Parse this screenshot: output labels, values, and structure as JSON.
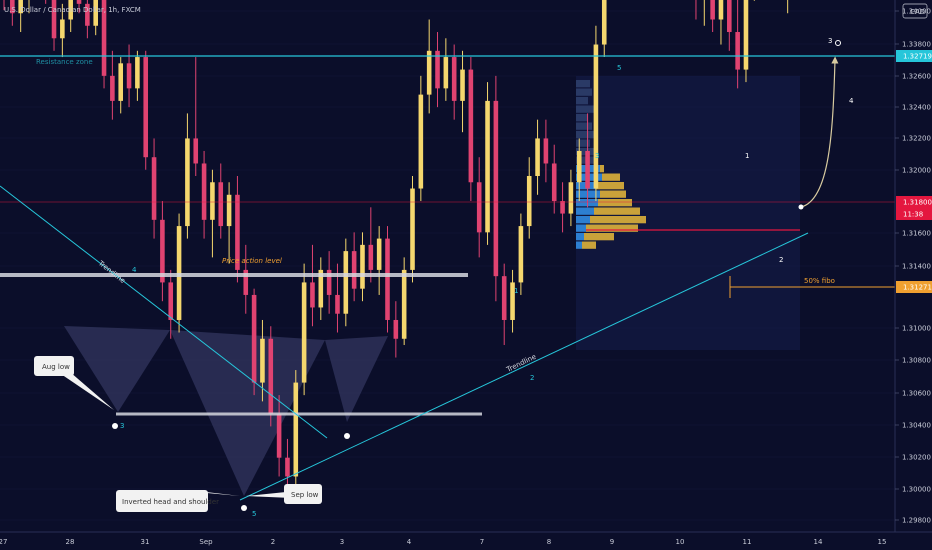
{
  "header": {
    "symbol_title": "U.S. Dollar / Canadian Dollar, 1h, FXCM",
    "currency": "CAD"
  },
  "colors": {
    "background": "#0b0e2a",
    "up": "#f5d76e",
    "down": "#e04371",
    "teal": "#26c6da",
    "white_line": "#d5d7df",
    "fibo": "#f0a030",
    "price_red": "#e4173f",
    "vp_blue": "#2d7fd1",
    "vp_gold": "#c9a23a",
    "text": "#c9ccd8",
    "grid": "#151938"
  },
  "x_axis": {
    "ticks": [
      "27",
      "28",
      "31",
      "Sep",
      "2",
      "3",
      "4",
      "7",
      "8",
      "9",
      "10",
      "11",
      "14",
      "15"
    ]
  },
  "y_axis": {
    "ticks": [
      "1.34000",
      "1.33800",
      "1.32600",
      "1.32400",
      "1.32200",
      "1.32000",
      "1.31600",
      "1.31400",
      "1.31000",
      "1.30800",
      "1.30600",
      "1.30400",
      "1.30200",
      "1.30000",
      "1.29800"
    ],
    "badges": [
      {
        "label": "1.32719",
        "color": "#26c6da"
      },
      {
        "label": "1.31800",
        "color": "#e4173f"
      },
      {
        "label": "11:38",
        "color": "#e4173f"
      },
      {
        "label": "1.31271",
        "color": "#f0a030"
      }
    ]
  },
  "annotations": {
    "resistance_zone": "Resistance zone",
    "price_action_level": "Price action level",
    "trendline_1": "Trendline",
    "trendline_2": "Trendline",
    "fibo": "50% fibo",
    "aug_low": "Aug low",
    "inverted_hs": "Inverted head and shoulder",
    "sep_low": "Sep low",
    "waves": [
      "4",
      "3",
      "5",
      "1",
      "2",
      "3",
      "5",
      "1",
      "2",
      "3",
      "4"
    ]
  },
  "chart_data": {
    "type": "candlestick",
    "title": "U.S. Dollar / Canadian Dollar, 1h, FXCM",
    "xlabel": "",
    "ylabel": "",
    "ylim": [
      1.298,
      1.34
    ],
    "x_categories": [
      "27",
      "28",
      "31",
      "Sep",
      "2",
      "3",
      "4",
      "7",
      "8",
      "9",
      "10",
      "11",
      "14",
      "15"
    ],
    "candles": [
      {
        "t": "27",
        "o": 1.3164,
        "h": 1.3168,
        "l": 1.3153,
        "c": 1.3158
      },
      {
        "t": "27",
        "o": 1.3158,
        "h": 1.3163,
        "l": 1.3148,
        "c": 1.3152
      },
      {
        "t": "27",
        "o": 1.3152,
        "h": 1.316,
        "l": 1.3146,
        "c": 1.3157
      },
      {
        "t": "27",
        "o": 1.3157,
        "h": 1.3166,
        "l": 1.3152,
        "c": 1.3162
      },
      {
        "t": "27",
        "o": 1.3162,
        "h": 1.317,
        "l": 1.3157,
        "c": 1.3165
      },
      {
        "t": "27",
        "o": 1.3165,
        "h": 1.3171,
        "l": 1.3155,
        "c": 1.3158
      },
      {
        "t": "27",
        "o": 1.3158,
        "h": 1.3162,
        "l": 1.314,
        "c": 1.3144
      },
      {
        "t": "27",
        "o": 1.3144,
        "h": 1.3155,
        "l": 1.3138,
        "c": 1.315
      },
      {
        "t": "27",
        "o": 1.315,
        "h": 1.3168,
        "l": 1.3146,
        "c": 1.3164
      },
      {
        "t": "27",
        "o": 1.3164,
        "h": 1.3172,
        "l": 1.3152,
        "c": 1.3155
      },
      {
        "t": "27",
        "o": 1.3155,
        "h": 1.316,
        "l": 1.3144,
        "c": 1.3148
      },
      {
        "t": "27",
        "o": 1.3148,
        "h": 1.3165,
        "l": 1.3145,
        "c": 1.3162
      },
      {
        "t": "28",
        "o": 1.3162,
        "h": 1.3166,
        "l": 1.3128,
        "c": 1.3132
      },
      {
        "t": "28",
        "o": 1.3132,
        "h": 1.314,
        "l": 1.3118,
        "c": 1.3124
      },
      {
        "t": "28",
        "o": 1.3124,
        "h": 1.3138,
        "l": 1.312,
        "c": 1.3136
      },
      {
        "t": "28",
        "o": 1.3136,
        "h": 1.3142,
        "l": 1.3122,
        "c": 1.3128
      },
      {
        "t": "28",
        "o": 1.3128,
        "h": 1.314,
        "l": 1.3124,
        "c": 1.3138
      },
      {
        "t": "28",
        "o": 1.3138,
        "h": 1.314,
        "l": 1.3102,
        "c": 1.3106
      },
      {
        "t": "28",
        "o": 1.3106,
        "h": 1.3112,
        "l": 1.308,
        "c": 1.3086
      },
      {
        "t": "28",
        "o": 1.3086,
        "h": 1.3092,
        "l": 1.306,
        "c": 1.3066
      },
      {
        "t": "28",
        "o": 1.3066,
        "h": 1.307,
        "l": 1.3048,
        "c": 1.3054
      },
      {
        "t": "28",
        "o": 1.3054,
        "h": 1.3088,
        "l": 1.305,
        "c": 1.3084
      },
      {
        "t": "31",
        "o": 1.3084,
        "h": 1.312,
        "l": 1.308,
        "c": 1.3112
      },
      {
        "t": "31",
        "o": 1.3112,
        "h": 1.3138,
        "l": 1.31,
        "c": 1.3104
      },
      {
        "t": "31",
        "o": 1.3104,
        "h": 1.3108,
        "l": 1.308,
        "c": 1.3086
      },
      {
        "t": "31",
        "o": 1.3086,
        "h": 1.3102,
        "l": 1.3074,
        "c": 1.3098
      },
      {
        "t": "31",
        "o": 1.3098,
        "h": 1.3104,
        "l": 1.308,
        "c": 1.3084
      },
      {
        "t": "31",
        "o": 1.3084,
        "h": 1.3098,
        "l": 1.3072,
        "c": 1.3094
      },
      {
        "t": "31",
        "o": 1.3094,
        "h": 1.31,
        "l": 1.3066,
        "c": 1.307
      },
      {
        "t": "31",
        "o": 1.307,
        "h": 1.3078,
        "l": 1.3056,
        "c": 1.3062
      },
      {
        "t": "Sep",
        "o": 1.3062,
        "h": 1.3064,
        "l": 1.303,
        "c": 1.3034
      },
      {
        "t": "Sep",
        "o": 1.3034,
        "h": 1.3054,
        "l": 1.3028,
        "c": 1.3048
      },
      {
        "t": "Sep",
        "o": 1.3048,
        "h": 1.3052,
        "l": 1.302,
        "c": 1.3024
      },
      {
        "t": "Sep",
        "o": 1.3024,
        "h": 1.303,
        "l": 1.3004,
        "c": 1.301
      },
      {
        "t": "Sep",
        "o": 1.301,
        "h": 1.3016,
        "l": 1.2996,
        "c": 1.3004
      },
      {
        "t": "Sep",
        "o": 1.3004,
        "h": 1.3038,
        "l": 1.3,
        "c": 1.3034
      },
      {
        "t": "Sep",
        "o": 1.3034,
        "h": 1.3072,
        "l": 1.303,
        "c": 1.3066
      },
      {
        "t": "Sep",
        "o": 1.3066,
        "h": 1.3078,
        "l": 1.3052,
        "c": 1.3058
      },
      {
        "t": "2",
        "o": 1.3058,
        "h": 1.3074,
        "l": 1.3054,
        "c": 1.307
      },
      {
        "t": "2",
        "o": 1.307,
        "h": 1.3076,
        "l": 1.3056,
        "c": 1.3062
      },
      {
        "t": "2",
        "o": 1.3062,
        "h": 1.3072,
        "l": 1.305,
        "c": 1.3056
      },
      {
        "t": "2",
        "o": 1.3056,
        "h": 1.308,
        "l": 1.3052,
        "c": 1.3076
      },
      {
        "t": "2",
        "o": 1.3076,
        "h": 1.3082,
        "l": 1.306,
        "c": 1.3064
      },
      {
        "t": "2",
        "o": 1.3064,
        "h": 1.3082,
        "l": 1.306,
        "c": 1.3078
      },
      {
        "t": "2",
        "o": 1.3078,
        "h": 1.309,
        "l": 1.3066,
        "c": 1.307
      },
      {
        "t": "2",
        "o": 1.307,
        "h": 1.3084,
        "l": 1.3062,
        "c": 1.308
      },
      {
        "t": "3",
        "o": 1.308,
        "h": 1.3084,
        "l": 1.305,
        "c": 1.3054
      },
      {
        "t": "3",
        "o": 1.3054,
        "h": 1.306,
        "l": 1.3042,
        "c": 1.3048
      },
      {
        "t": "3",
        "o": 1.3048,
        "h": 1.3074,
        "l": 1.3046,
        "c": 1.307
      },
      {
        "t": "3",
        "o": 1.307,
        "h": 1.31,
        "l": 1.3066,
        "c": 1.3096
      },
      {
        "t": "3",
        "o": 1.3096,
        "h": 1.3132,
        "l": 1.3092,
        "c": 1.3126
      },
      {
        "t": "3",
        "o": 1.3126,
        "h": 1.315,
        "l": 1.312,
        "c": 1.314
      },
      {
        "t": "4",
        "o": 1.314,
        "h": 1.3146,
        "l": 1.3122,
        "c": 1.3128
      },
      {
        "t": "4",
        "o": 1.3128,
        "h": 1.3144,
        "l": 1.3124,
        "c": 1.3138
      },
      {
        "t": "4",
        "o": 1.3138,
        "h": 1.3142,
        "l": 1.3118,
        "c": 1.3124
      },
      {
        "t": "4",
        "o": 1.3124,
        "h": 1.314,
        "l": 1.3114,
        "c": 1.3134
      },
      {
        "t": "4",
        "o": 1.3134,
        "h": 1.3138,
        "l": 1.3092,
        "c": 1.3098
      },
      {
        "t": "4",
        "o": 1.3098,
        "h": 1.3106,
        "l": 1.3074,
        "c": 1.3082
      },
      {
        "t": "4",
        "o": 1.3082,
        "h": 1.313,
        "l": 1.3078,
        "c": 1.3124
      },
      {
        "t": "4",
        "o": 1.3124,
        "h": 1.3132,
        "l": 1.306,
        "c": 1.3068
      },
      {
        "t": "7",
        "o": 1.3068,
        "h": 1.3072,
        "l": 1.3046,
        "c": 1.3054
      },
      {
        "t": "7",
        "o": 1.3054,
        "h": 1.307,
        "l": 1.305,
        "c": 1.3066
      },
      {
        "t": "7",
        "o": 1.3066,
        "h": 1.3088,
        "l": 1.3062,
        "c": 1.3084
      },
      {
        "t": "7",
        "o": 1.3084,
        "h": 1.3106,
        "l": 1.308,
        "c": 1.31
      },
      {
        "t": "7",
        "o": 1.31,
        "h": 1.3118,
        "l": 1.3094,
        "c": 1.3112
      },
      {
        "t": "7",
        "o": 1.3112,
        "h": 1.3118,
        "l": 1.3098,
        "c": 1.3104
      },
      {
        "t": "7",
        "o": 1.3104,
        "h": 1.311,
        "l": 1.3088,
        "c": 1.3092
      },
      {
        "t": "7",
        "o": 1.3092,
        "h": 1.3098,
        "l": 1.3082,
        "c": 1.3088
      },
      {
        "t": "8",
        "o": 1.3088,
        "h": 1.3102,
        "l": 1.3084,
        "c": 1.3098
      },
      {
        "t": "8",
        "o": 1.3098,
        "h": 1.3112,
        "l": 1.3092,
        "c": 1.3108
      },
      {
        "t": "8",
        "o": 1.3108,
        "h": 1.312,
        "l": 1.309,
        "c": 1.3096
      },
      {
        "t": "8",
        "o": 1.3096,
        "h": 1.3148,
        "l": 1.3092,
        "c": 1.3142
      },
      {
        "t": "8",
        "o": 1.3142,
        "h": 1.321,
        "l": 1.3138,
        "c": 1.32
      },
      {
        "t": "8",
        "o": 1.32,
        "h": 1.3236,
        "l": 1.319,
        "c": 1.3228
      },
      {
        "t": "8",
        "o": 1.3228,
        "h": 1.3244,
        "l": 1.321,
        "c": 1.3216
      },
      {
        "t": "8",
        "o": 1.3216,
        "h": 1.3248,
        "l": 1.3212,
        "c": 1.324
      },
      {
        "t": "9",
        "o": 1.324,
        "h": 1.3266,
        "l": 1.3232,
        "c": 1.3244
      },
      {
        "t": "9",
        "o": 1.3244,
        "h": 1.325,
        "l": 1.3226,
        "c": 1.3232
      },
      {
        "t": "9",
        "o": 1.3232,
        "h": 1.3248,
        "l": 1.3226,
        "c": 1.3242
      },
      {
        "t": "9",
        "o": 1.3242,
        "h": 1.3264,
        "l": 1.3236,
        "c": 1.3256
      },
      {
        "t": "9",
        "o": 1.3256,
        "h": 1.3262,
        "l": 1.3228,
        "c": 1.3232
      },
      {
        "t": "9",
        "o": 1.3232,
        "h": 1.3238,
        "l": 1.321,
        "c": 1.3214
      },
      {
        "t": "9",
        "o": 1.3214,
        "h": 1.322,
        "l": 1.317,
        "c": 1.3176
      },
      {
        "t": "9",
        "o": 1.3176,
        "h": 1.3182,
        "l": 1.315,
        "c": 1.3158
      },
      {
        "t": "10",
        "o": 1.3158,
        "h": 1.317,
        "l": 1.3148,
        "c": 1.3162
      },
      {
        "t": "10",
        "o": 1.3162,
        "h": 1.3166,
        "l": 1.3146,
        "c": 1.315
      },
      {
        "t": "10",
        "o": 1.315,
        "h": 1.3164,
        "l": 1.3142,
        "c": 1.316
      },
      {
        "t": "10",
        "o": 1.316,
        "h": 1.3166,
        "l": 1.314,
        "c": 1.3146
      },
      {
        "t": "10",
        "o": 1.3146,
        "h": 1.317,
        "l": 1.3128,
        "c": 1.3134
      },
      {
        "t": "10",
        "o": 1.3134,
        "h": 1.3166,
        "l": 1.313,
        "c": 1.316
      },
      {
        "t": "11",
        "o": 1.316,
        "h": 1.32,
        "l": 1.3156,
        "c": 1.3194
      },
      {
        "t": "11",
        "o": 1.3194,
        "h": 1.3202,
        "l": 1.3178,
        "c": 1.3186
      },
      {
        "t": "11",
        "o": 1.3186,
        "h": 1.319,
        "l": 1.317,
        "c": 1.3176
      },
      {
        "t": "11",
        "o": 1.3176,
        "h": 1.3182,
        "l": 1.316,
        "c": 1.3166
      },
      {
        "t": "11",
        "o": 1.3166,
        "h": 1.3176,
        "l": 1.3152,
        "c": 1.317
      },
      {
        "t": "11",
        "o": 1.317,
        "h": 1.3184,
        "l": 1.3164,
        "c": 1.318
      }
    ],
    "horizontal_levels": [
      {
        "label": "Resistance zone",
        "y": 1.32719
      },
      {
        "label": "Price action level",
        "y": 1.3142
      },
      {
        "label": "Aug low",
        "y": 1.3049
      },
      {
        "label": "50% fibo",
        "y": 1.31271
      },
      {
        "label": "",
        "y": 1.318
      }
    ],
    "grid": false,
    "legend": "none"
  }
}
